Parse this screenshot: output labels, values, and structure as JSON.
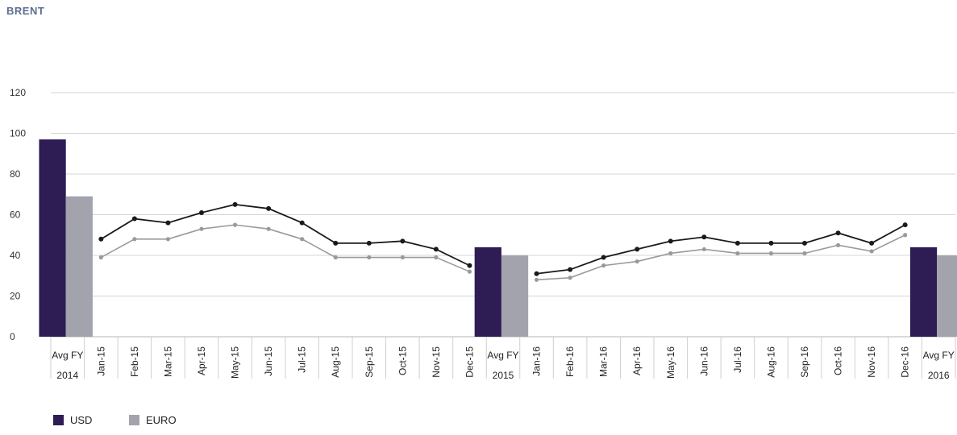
{
  "chart_data": {
    "type": "bar+line",
    "title": "BRENT",
    "ylim": [
      0,
      120
    ],
    "yticks": [
      0,
      20,
      40,
      60,
      80,
      100,
      120
    ],
    "grid": true,
    "legend_position": "bottom-left",
    "colors": {
      "usd": "#2e1c55",
      "euro": "#a3a3ad",
      "usd_line": "#1a1a1a",
      "euro_line": "#9a9a9a",
      "grid": "#d4d4d4"
    },
    "series": [
      {
        "name": "USD"
      },
      {
        "name": "EURO"
      }
    ],
    "categories": [
      {
        "label": [
          "Avg FY",
          "2014"
        ],
        "kind": "bar",
        "usd": 97,
        "euro": 69
      },
      {
        "label": [
          "Jan-15"
        ],
        "kind": "point",
        "usd": 48,
        "euro": 39
      },
      {
        "label": [
          "Feb-15"
        ],
        "kind": "point",
        "usd": 58,
        "euro": 48
      },
      {
        "label": [
          "Mar-15"
        ],
        "kind": "point",
        "usd": 56,
        "euro": 48
      },
      {
        "label": [
          "Apr-15"
        ],
        "kind": "point",
        "usd": 61,
        "euro": 53
      },
      {
        "label": [
          "May-15"
        ],
        "kind": "point",
        "usd": 65,
        "euro": 55
      },
      {
        "label": [
          "Jun-15"
        ],
        "kind": "point",
        "usd": 63,
        "euro": 53
      },
      {
        "label": [
          "Jul-15"
        ],
        "kind": "point",
        "usd": 56,
        "euro": 48
      },
      {
        "label": [
          "Aug-15"
        ],
        "kind": "point",
        "usd": 46,
        "euro": 39
      },
      {
        "label": [
          "Sep-15"
        ],
        "kind": "point",
        "usd": 46,
        "euro": 39
      },
      {
        "label": [
          "Oct-15"
        ],
        "kind": "point",
        "usd": 47,
        "euro": 39
      },
      {
        "label": [
          "Nov-15"
        ],
        "kind": "point",
        "usd": 43,
        "euro": 39
      },
      {
        "label": [
          "Dec-15"
        ],
        "kind": "point",
        "usd": 35,
        "euro": 32
      },
      {
        "label": [
          "Avg FY",
          "2015"
        ],
        "kind": "bar",
        "usd": 44,
        "euro": 40
      },
      {
        "label": [
          "Jan-16"
        ],
        "kind": "point",
        "usd": 31,
        "euro": 28
      },
      {
        "label": [
          "Feb-16"
        ],
        "kind": "point",
        "usd": 33,
        "euro": 29
      },
      {
        "label": [
          "Mar-16"
        ],
        "kind": "point",
        "usd": 39,
        "euro": 35
      },
      {
        "label": [
          "Apr-16"
        ],
        "kind": "point",
        "usd": 43,
        "euro": 37
      },
      {
        "label": [
          "May-16"
        ],
        "kind": "point",
        "usd": 47,
        "euro": 41
      },
      {
        "label": [
          "Jun-16"
        ],
        "kind": "point",
        "usd": 49,
        "euro": 43
      },
      {
        "label": [
          "Jul-16"
        ],
        "kind": "point",
        "usd": 46,
        "euro": 41
      },
      {
        "label": [
          "Aug-16"
        ],
        "kind": "point",
        "usd": 46,
        "euro": 41
      },
      {
        "label": [
          "Sep-16"
        ],
        "kind": "point",
        "usd": 46,
        "euro": 41
      },
      {
        "label": [
          "Oct-16"
        ],
        "kind": "point",
        "usd": 51,
        "euro": 45
      },
      {
        "label": [
          "Nov-16"
        ],
        "kind": "point",
        "usd": 46,
        "euro": 42
      },
      {
        "label": [
          "Dec-16"
        ],
        "kind": "point",
        "usd": 55,
        "euro": 50
      },
      {
        "label": [
          "Avg FY",
          "2016"
        ],
        "kind": "bar",
        "usd": 44,
        "euro": 40
      }
    ]
  }
}
